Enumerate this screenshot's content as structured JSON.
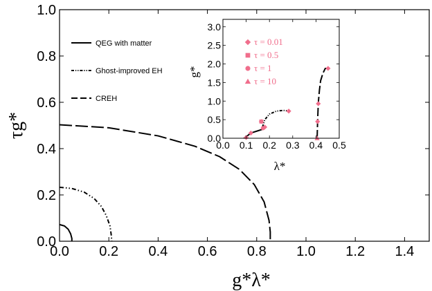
{
  "chart_data": {
    "type": "line",
    "main": {
      "xlabel": "g*λ*",
      "ylabel": "τg*",
      "xlim": [
        0,
        1.5
      ],
      "ylim": [
        0,
        1.0
      ],
      "xticks": [
        0.0,
        0.2,
        0.4,
        0.6,
        0.8,
        1.0,
        1.2,
        1.4
      ],
      "xtick_labels": [
        "0.0",
        "0.2",
        "0.4",
        "0.6",
        "0.8",
        "1.0",
        "1.2",
        "1.4"
      ],
      "yticks": [
        0.0,
        0.2,
        0.4,
        0.6,
        0.8,
        1.0
      ],
      "ytick_labels": [
        "0.0",
        "0.2",
        "0.4",
        "0.6",
        "0.8",
        "1.0"
      ],
      "legend_position": "top-left",
      "series": [
        {
          "name": "QEG with matter",
          "style": "solid",
          "x": [
            0,
            0.02,
            0.035,
            0.045,
            0.05,
            0.05
          ],
          "y": [
            0.072,
            0.066,
            0.052,
            0.032,
            0.012,
            0
          ]
        },
        {
          "name": "Ghost-improved EH",
          "style": "dash-dot-dot",
          "x": [
            0,
            0.05,
            0.1,
            0.14,
            0.17,
            0.19,
            0.205,
            0.21,
            0.212
          ],
          "y": [
            0.233,
            0.228,
            0.212,
            0.185,
            0.15,
            0.11,
            0.065,
            0.025,
            0
          ]
        },
        {
          "name": "CREH",
          "style": "long-dash",
          "x": [
            0,
            0.2,
            0.4,
            0.55,
            0.65,
            0.73,
            0.79,
            0.83,
            0.85,
            0.855,
            0.855
          ],
          "y": [
            0.503,
            0.49,
            0.455,
            0.41,
            0.365,
            0.31,
            0.245,
            0.17,
            0.09,
            0.04,
            0
          ]
        }
      ]
    },
    "inset": {
      "xlabel": "λ*",
      "ylabel": "g*",
      "xlim": [
        0,
        0.5
      ],
      "ylim": [
        0,
        3.2
      ],
      "xticks": [
        0.0,
        0.1,
        0.2,
        0.3,
        0.4,
        0.5
      ],
      "xtick_labels": [
        "0.0",
        "0.1",
        "0.2",
        "0.3",
        "0.4",
        "0.5"
      ],
      "yticks": [
        0.0,
        0.5,
        1.0,
        1.5,
        2.0,
        2.5,
        3.0
      ],
      "ytick_labels": [
        "0.0",
        "0.5",
        "1.0",
        "1.5",
        "2.0",
        "2.5",
        "3.0"
      ],
      "marker_color": "#f06e8c",
      "marker_legend": [
        {
          "symbol": "diamond",
          "label": "τ = 0.01"
        },
        {
          "symbol": "square",
          "label": "τ = 0.5"
        },
        {
          "symbol": "circle",
          "label": "τ = 1"
        },
        {
          "symbol": "triangle",
          "label": "τ = 10"
        }
      ],
      "curves": [
        {
          "series": "QEG with matter",
          "style": "solid",
          "x": [
            0.09,
            0.1,
            0.12,
            0.15,
            0.175
          ],
          "y": [
            0.0,
            0.04,
            0.14,
            0.2,
            0.25
          ]
        },
        {
          "series": "Ghost-improved EH",
          "style": "dash-dot-dot",
          "x": [
            0.17,
            0.18,
            0.2,
            0.23,
            0.26,
            0.285
          ],
          "y": [
            0.3,
            0.5,
            0.65,
            0.73,
            0.75,
            0.73
          ]
        },
        {
          "series": "CREH",
          "style": "long-dash",
          "x": [
            0.405,
            0.407,
            0.41,
            0.415,
            0.42,
            0.43,
            0.44,
            0.452
          ],
          "y": [
            0.0,
            0.45,
            0.95,
            1.3,
            1.55,
            1.75,
            1.88,
            1.88
          ]
        }
      ],
      "points": [
        {
          "symbol": "diamond",
          "x": 0.1,
          "y": 0.02
        },
        {
          "symbol": "diamond",
          "x": 0.12,
          "y": 0.14
        },
        {
          "symbol": "diamond",
          "x": 0.165,
          "y": 0.45
        },
        {
          "symbol": "diamond",
          "x": 0.18,
          "y": 0.3
        },
        {
          "symbol": "diamond",
          "x": 0.283,
          "y": 0.73
        },
        {
          "symbol": "diamond",
          "x": 0.407,
          "y": 0.45
        },
        {
          "symbol": "diamond",
          "x": 0.41,
          "y": 0.93
        },
        {
          "symbol": "diamond",
          "x": 0.452,
          "y": 1.88
        },
        {
          "symbol": "square",
          "x": 0.165,
          "y": 0.45
        },
        {
          "symbol": "circle",
          "x": 0.172,
          "y": 0.27
        },
        {
          "symbol": "triangle",
          "x": 0.405,
          "y": 0.0
        }
      ]
    }
  }
}
